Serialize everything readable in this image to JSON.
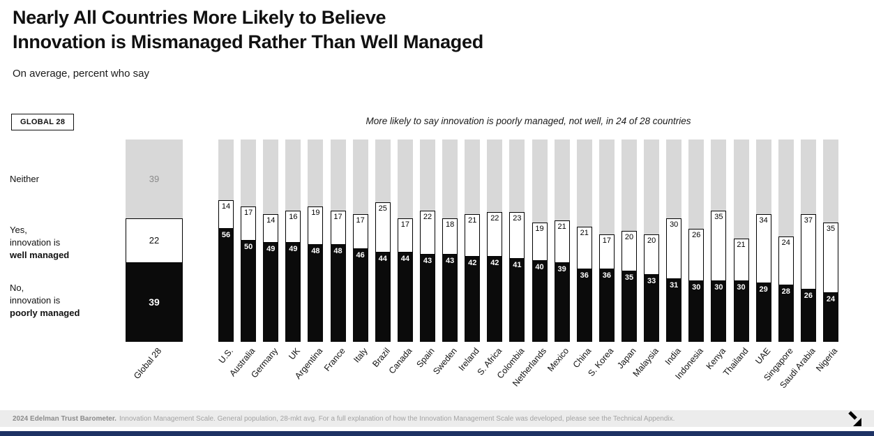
{
  "header": {
    "title_line1": "Nearly All Countries More Likely to Believe",
    "title_line2": "Innovation is Mismanaged Rather Than Well Managed",
    "subtitle": "On average, percent who say"
  },
  "badge": "GLOBAL 28",
  "annotation": "More likely to say innovation is poorly managed, not well, in 24 of 28 countries",
  "legend": {
    "neither_label": "Neither",
    "well_line1": "Yes,",
    "well_line2": "innovation is",
    "well_line3": "well managed",
    "poor_line1": "No,",
    "poor_line2": "innovation is",
    "poor_line3": "poorly managed"
  },
  "colors": {
    "neither": "#d8d8d8",
    "well": "#ffffff",
    "poor": "#0b0b0b",
    "accent_bottom_bar": "#1e3264"
  },
  "chart_data": {
    "type": "bar",
    "stacked": true,
    "unit": "percent",
    "total": 100,
    "title": "Nearly All Countries More Likely to Believe Innovation is Mismanaged Rather Than Well Managed",
    "annotation": "More likely to say innovation is poorly managed, not well, in 24 of 28 countries",
    "global": {
      "label": "Global 28",
      "neither": 39,
      "well_managed": 22,
      "poorly_managed": 39
    },
    "categories": [
      "U.S.",
      "Australia",
      "Germany",
      "UK",
      "Argentina",
      "France",
      "Italy",
      "Brazil",
      "Canada",
      "Spain",
      "Sweden",
      "Ireland",
      "S. Africa",
      "Colombia",
      "Netherlands",
      "Mexico",
      "China",
      "S. Korea",
      "Japan",
      "Malaysia",
      "India",
      "Indonesia",
      "Kenya",
      "Thailand",
      "UAE",
      "Singapore",
      "Saudi Arabia",
      "Nigeria"
    ],
    "series": [
      {
        "name": "Yes, innovation is well managed",
        "color": "#ffffff",
        "values": [
          14,
          17,
          14,
          16,
          19,
          17,
          17,
          25,
          17,
          22,
          18,
          21,
          22,
          23,
          19,
          21,
          21,
          17,
          20,
          20,
          30,
          26,
          35,
          21,
          34,
          24,
          37,
          35
        ]
      },
      {
        "name": "No, innovation is poorly managed",
        "color": "#0b0b0b",
        "values": [
          56,
          50,
          49,
          49,
          48,
          48,
          46,
          44,
          44,
          43,
          43,
          42,
          42,
          41,
          40,
          39,
          36,
          36,
          35,
          33,
          31,
          30,
          30,
          30,
          29,
          28,
          26,
          24
        ]
      }
    ],
    "legend_position": "left",
    "ylim": [
      0,
      100
    ]
  },
  "footer": {
    "bold": "2024 Edelman Trust Barometer.",
    "text": "Innovation Management Scale. General population, 28-mkt avg. For a full explanation of how the Innovation Management Scale was developed, please see the Technical Appendix."
  }
}
